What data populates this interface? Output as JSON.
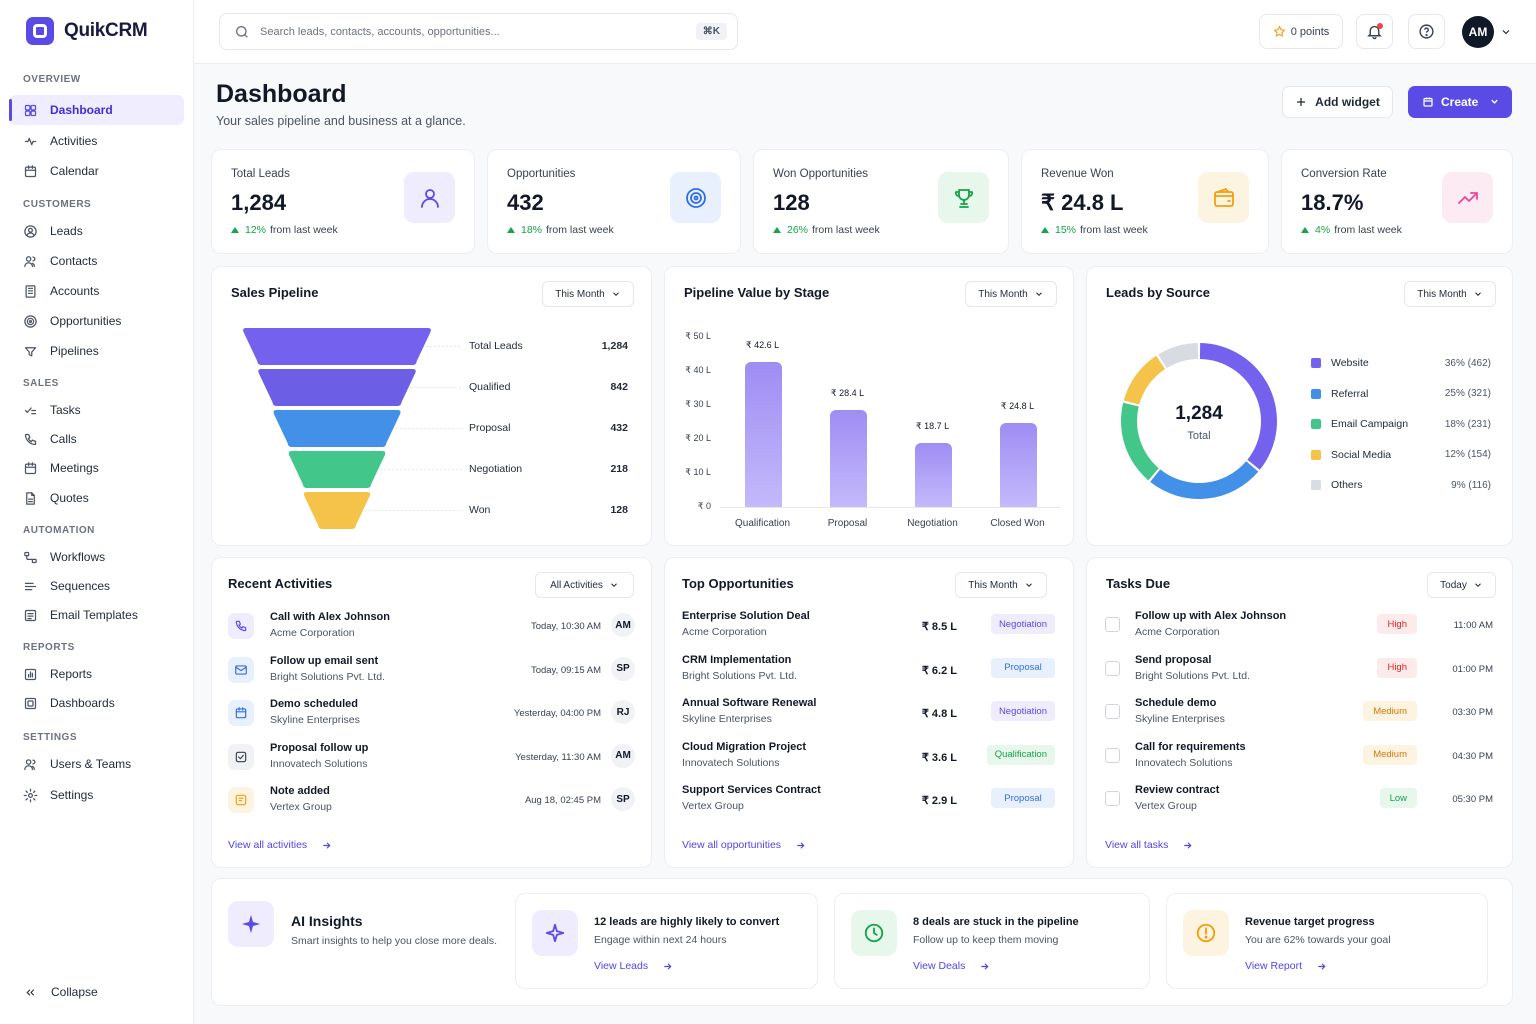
{
  "app": {
    "name": "QuikCRM"
  },
  "sidebar": {
    "sections": [
      {
        "title": "OVERVIEW",
        "items": [
          {
            "label": "Dashboard",
            "icon": "grid-icon",
            "active": true
          },
          {
            "label": "Activities",
            "icon": "activity-icon"
          },
          {
            "label": "Calendar",
            "icon": "calendar-icon"
          }
        ]
      },
      {
        "title": "CUSTOMERS",
        "items": [
          {
            "label": "Leads",
            "icon": "user-circle-icon"
          },
          {
            "label": "Contacts",
            "icon": "users-icon"
          },
          {
            "label": "Accounts",
            "icon": "building-icon"
          },
          {
            "label": "Opportunities",
            "icon": "target-icon"
          },
          {
            "label": "Pipelines",
            "icon": "pipeline-icon"
          }
        ]
      },
      {
        "title": "SALES",
        "items": [
          {
            "label": "Tasks",
            "icon": "check-list-icon"
          },
          {
            "label": "Calls",
            "icon": "phone-icon"
          },
          {
            "label": "Meetings",
            "icon": "calendar-icon"
          },
          {
            "label": "Quotes",
            "icon": "document-icon"
          }
        ]
      },
      {
        "title": "AUTOMATION",
        "items": [
          {
            "label": "Workflows",
            "icon": "workflow-icon"
          },
          {
            "label": "Sequences",
            "icon": "sequence-icon"
          },
          {
            "label": "Email Templates",
            "icon": "template-icon"
          }
        ]
      },
      {
        "title": "REPORTS",
        "items": [
          {
            "label": "Reports",
            "icon": "report-icon"
          },
          {
            "label": "Dashboards",
            "icon": "dashboard-icon"
          }
        ]
      },
      {
        "title": "SETTINGS",
        "items": [
          {
            "label": "Users & Teams",
            "icon": "users-icon"
          },
          {
            "label": "Settings",
            "icon": "gear-icon"
          }
        ]
      }
    ],
    "collapse_label": "Collapse"
  },
  "topbar": {
    "search_placeholder": "Search leads, contacts, accounts, opportunities...",
    "shortcut": "⌘K",
    "points": "0 points",
    "avatar": "AM"
  },
  "page": {
    "title": "Dashboard",
    "subtitle": "Your sales pipeline and business at a glance.",
    "add_widget": "Add widget",
    "create": "Create"
  },
  "stats": [
    {
      "label": "Total Leads",
      "value": "1,284",
      "delta": "12%",
      "delta_text": "from last week",
      "icon": "user-icon",
      "color": "#5b4be6",
      "bg": "#eeecfd"
    },
    {
      "label": "Opportunities",
      "value": "432",
      "delta": "18%",
      "delta_text": "from last week",
      "icon": "target-icon",
      "color": "#2f6fe4",
      "bg": "#e8f0fd"
    },
    {
      "label": "Won Opportunities",
      "value": "128",
      "delta": "26%",
      "delta_text": "from last week",
      "icon": "trophy-icon",
      "color": "#16a34a",
      "bg": "#e7f7ec"
    },
    {
      "label": "Revenue Won",
      "value": "₹ 24.8 L",
      "delta": "15%",
      "delta_text": "from last week",
      "icon": "wallet-icon",
      "color": "#f59e0b",
      "bg": "#fdf3e1"
    },
    {
      "label": "Conversion Rate",
      "value": "18.7%",
      "delta": "4%",
      "delta_text": "from last week",
      "icon": "trend-up-icon",
      "color": "#ec4899",
      "bg": "#fdebf3"
    }
  ],
  "sales_pipeline": {
    "title": "Sales Pipeline",
    "filter": "This Month",
    "stages": [
      {
        "label": "Total Leads",
        "value": "1,284",
        "color": "#7462ee"
      },
      {
        "label": "Qualified",
        "value": "842",
        "color": "#6d5ee6"
      },
      {
        "label": "Proposal",
        "value": "432",
        "color": "#4290e8"
      },
      {
        "label": "Negotiation",
        "value": "218",
        "color": "#43c68a"
      },
      {
        "label": "Won",
        "value": "128",
        "color": "#f5c34a"
      }
    ]
  },
  "chart_data": {
    "type": "bar",
    "title": "Pipeline Value by Stage",
    "categories": [
      "Qualification",
      "Proposal",
      "Negotiation",
      "Closed Won"
    ],
    "values": [
      42.6,
      28.4,
      18.7,
      24.8
    ],
    "value_labels": [
      "₹ 42.6 L",
      "₹ 28.4 L",
      "₹ 18.7 L",
      "₹ 24.8 L"
    ],
    "yticks": [
      "₹ 0",
      "₹ 10 L",
      "₹ 20 L",
      "₹ 30 L",
      "₹ 40 L",
      "₹ 50 L"
    ],
    "ylim": [
      0,
      50
    ],
    "filter": "This Month"
  },
  "leads_by_source": {
    "title": "Leads by Source",
    "filter": "This Month",
    "total": "1,284",
    "total_label": "Total",
    "segments": [
      {
        "name": "Website",
        "pct": 36,
        "label": "36% (462)",
        "color": "#7462ee"
      },
      {
        "name": "Referral",
        "pct": 25,
        "label": "25% (321)",
        "color": "#4290e8"
      },
      {
        "name": "Email Campaign",
        "pct": 18,
        "label": "18% (231)",
        "color": "#43c68a"
      },
      {
        "name": "Social Media",
        "pct": 12,
        "label": "12% (154)",
        "color": "#f5c34a"
      },
      {
        "name": "Others",
        "pct": 9,
        "label": "9% (116)",
        "color": "#d9dbe3"
      }
    ]
  },
  "recent_activities": {
    "title": "Recent Activities",
    "filter": "All Activities",
    "items": [
      {
        "title": "Call with Alex Johnson",
        "sub": "Acme Corporation",
        "time": "Today, 10:30 AM",
        "user": "AM",
        "icon": "phone-icon",
        "color": "#5b4be6",
        "bg": "#eeecfd"
      },
      {
        "title": "Follow up email sent",
        "sub": "Bright Solutions Pvt. Ltd.",
        "time": "Today, 09:15 AM",
        "user": "SP",
        "icon": "mail-icon",
        "color": "#2f6fe4",
        "bg": "#e8f0fd"
      },
      {
        "title": "Demo scheduled",
        "sub": "Skyline Enterprises",
        "time": "Yesterday, 04:00 PM",
        "user": "RJ",
        "icon": "calendar-icon",
        "color": "#2f6fe4",
        "bg": "#e8f0fd"
      },
      {
        "title": "Proposal follow up",
        "sub": "Innovatech Solutions",
        "time": "Yesterday, 11:30 AM",
        "user": "AM",
        "icon": "check-square-icon",
        "color": "#374151",
        "bg": "#f1f2f5"
      },
      {
        "title": "Note added",
        "sub": "Vertex Group",
        "time": "Aug 18, 02:45 PM",
        "user": "SP",
        "icon": "note-icon",
        "color": "#f59e0b",
        "bg": "#fdf3e1"
      }
    ],
    "link": "View all activities"
  },
  "top_opportunities": {
    "title": "Top Opportunities",
    "filter": "This Month",
    "items": [
      {
        "title": "Enterprise Solution Deal",
        "sub": "Acme Corporation",
        "amount": "₹ 8.5 L",
        "stage": "Negotiation",
        "fg": "#5b4be6",
        "bg": "#eeecfd"
      },
      {
        "title": "CRM Implementation",
        "sub": "Bright Solutions Pvt. Ltd.",
        "amount": "₹ 6.2 L",
        "stage": "Proposal",
        "fg": "#2f6fe4",
        "bg": "#e8f0fd"
      },
      {
        "title": "Annual Software Renewal",
        "sub": "Skyline Enterprises",
        "amount": "₹ 4.8 L",
        "stage": "Negotiation",
        "fg": "#5b4be6",
        "bg": "#eeecfd"
      },
      {
        "title": "Cloud Migration Project",
        "sub": "Innovatech Solutions",
        "amount": "₹ 3.6 L",
        "stage": "Qualification",
        "fg": "#16a34a",
        "bg": "#e7f7ec"
      },
      {
        "title": "Support Services Contract",
        "sub": "Vertex Group",
        "amount": "₹ 2.9 L",
        "stage": "Proposal",
        "fg": "#2f6fe4",
        "bg": "#e8f0fd"
      }
    ],
    "link": "View all opportunities"
  },
  "tasks_due": {
    "title": "Tasks Due",
    "filter": "Today",
    "items": [
      {
        "title": "Follow up with Alex Johnson",
        "sub": "Acme Corporation",
        "priority": "High",
        "time": "11:00 AM",
        "fg": "#dc2626",
        "bg": "#fdeaea"
      },
      {
        "title": "Send proposal",
        "sub": "Bright Solutions Pvt. Ltd.",
        "priority": "High",
        "time": "01:00 PM",
        "fg": "#dc2626",
        "bg": "#fdeaea"
      },
      {
        "title": "Schedule demo",
        "sub": "Skyline Enterprises",
        "priority": "Medium",
        "time": "03:30 PM",
        "fg": "#d97706",
        "bg": "#fdf3e1"
      },
      {
        "title": "Call for requirements",
        "sub": "Innovatech Solutions",
        "priority": "Medium",
        "time": "04:30 PM",
        "fg": "#d97706",
        "bg": "#fdf3e1"
      },
      {
        "title": "Review contract",
        "sub": "Vertex Group",
        "priority": "Low",
        "time": "05:30 PM",
        "fg": "#16a34a",
        "bg": "#e7f7ec"
      }
    ],
    "link": "View all tasks"
  },
  "ai_insights": {
    "title": "AI Insights",
    "subtitle": "Smart insights to help you close more deals.",
    "cards": [
      {
        "title": "12 leads are highly likely to convert",
        "sub": "Engage within next 24 hours",
        "link": "View Leads",
        "icon": "sparkle-icon",
        "color": "#5b4be6",
        "bg": "#eeecfd"
      },
      {
        "title": "8 deals are stuck in the pipeline",
        "sub": "Follow up to keep them moving",
        "link": "View Deals",
        "icon": "clock-icon",
        "color": "#16a34a",
        "bg": "#e7f7ec"
      },
      {
        "title": "Revenue target progress",
        "sub": "You are 62% towards your goal",
        "link": "View Report",
        "icon": "alert-circle-icon",
        "color": "#f59e0b",
        "bg": "#fdf3e1"
      }
    ]
  }
}
